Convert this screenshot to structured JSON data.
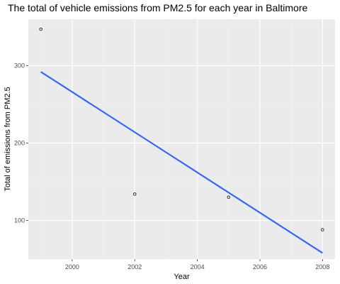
{
  "chart_data": {
    "type": "scatter",
    "title": "The total of vehicle emissions from PM2.5 for each year in Baltimore",
    "xlabel": "Year",
    "ylabel": "Total of emissions from PM2.5",
    "xlim": [
      1998.6,
      2008.4
    ],
    "ylim": [
      50,
      360
    ],
    "x_ticks": [
      2000,
      2002,
      2004,
      2006,
      2008
    ],
    "y_ticks": [
      100,
      200,
      300
    ],
    "grid": true,
    "background": "#ebebeb",
    "points": [
      {
        "x": 1999,
        "y": 347
      },
      {
        "x": 2002,
        "y": 134
      },
      {
        "x": 2005,
        "y": 130
      },
      {
        "x": 2008,
        "y": 88
      }
    ],
    "trendline": {
      "method": "linear",
      "color": "#3366ff",
      "start": {
        "x": 1999,
        "y": 292
      },
      "end": {
        "x": 2008,
        "y": 58
      }
    }
  }
}
